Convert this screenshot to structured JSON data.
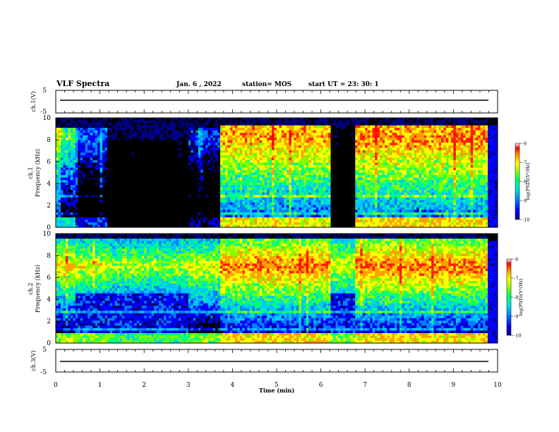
{
  "header": {
    "title": "VLF Spectra",
    "date": "Jan. 6 , 2022",
    "station": "station= MOS",
    "start": "start UT = 23: 30: 1"
  },
  "colors": {
    "colormap": [
      "#000080",
      "#0000ff",
      "#0080ff",
      "#00c8ff",
      "#00ff80",
      "#80ff00",
      "#ffff00",
      "#ffa000",
      "#ff2000",
      "#ff0000"
    ],
    "background_low": "#000000",
    "trace": "#000000"
  },
  "chart_data": [
    {
      "type": "line",
      "panel": "ch1-waveform",
      "ylabel": "ch.1(V)",
      "ylim": [
        -5,
        5
      ],
      "yticks": [
        5,
        -5
      ],
      "trace_level": 0
    },
    {
      "type": "heatmap",
      "panel": "ch1-spectrogram",
      "ylabel": "Frequency (kHz)",
      "ylabel_prefix": "ch.1",
      "ylim": [
        0,
        10
      ],
      "yticks": [
        0,
        2,
        4,
        6,
        8,
        10
      ],
      "xlim": [
        0,
        10
      ],
      "colorbar": {
        "label": "log(PSD)(V²/Hz)",
        "range": [
          -10,
          -6
        ],
        "ticks": [
          -6,
          -7,
          -8,
          -9,
          -10
        ]
      },
      "segments_min": [
        [
          0.0,
          0.45
        ],
        [
          0.45,
          1.15
        ],
        [
          1.15,
          3.0
        ],
        [
          3.0,
          3.7
        ],
        [
          3.7,
          6.2
        ],
        [
          6.2,
          6.8
        ],
        [
          6.8,
          9.8
        ]
      ],
      "segment_peak_log_psd": [
        -7.5,
        -8.5,
        -9.8,
        -8.8,
        -6.5,
        -9.6,
        -6.4
      ],
      "band_edge_khz": [
        9.2,
        9.1,
        8.0,
        9.2,
        9.3,
        9.0,
        9.3
      ]
    },
    {
      "type": "heatmap",
      "panel": "ch2-spectrogram",
      "ylabel": "Frequency (kHz)",
      "ylabel_prefix": "ch.2",
      "ylim": [
        0,
        10
      ],
      "yticks": [
        0,
        2,
        4,
        6,
        8,
        10
      ],
      "xlim": [
        0,
        10
      ],
      "colorbar": {
        "label": "log(PSD)(V²/Hz)",
        "range": [
          -10,
          -6
        ],
        "ticks": [
          -6,
          -7,
          -8,
          -9,
          -10
        ]
      },
      "segments_min": [
        [
          0.0,
          0.45
        ],
        [
          0.45,
          1.15
        ],
        [
          1.15,
          3.0
        ],
        [
          3.0,
          3.7
        ],
        [
          3.7,
          6.2
        ],
        [
          6.2,
          6.8
        ],
        [
          6.8,
          9.8
        ]
      ],
      "segment_peak_log_psd": [
        -6.8,
        -7.0,
        -7.2,
        -7.0,
        -6.4,
        -7.0,
        -6.4
      ],
      "band_edge_khz": [
        9.6,
        9.6,
        9.5,
        9.6,
        9.6,
        9.6,
        9.6
      ]
    },
    {
      "type": "line",
      "panel": "ch3-waveform",
      "ylabel": "ch.3(V)",
      "ylim": [
        -5,
        5
      ],
      "yticks": [
        5,
        -5
      ],
      "trace_level": -0.3,
      "xlabel": "Time (min)",
      "xlim": [
        0,
        10
      ],
      "xticks": [
        0,
        1,
        2,
        3,
        4,
        5,
        6,
        7,
        8,
        9,
        10
      ]
    }
  ]
}
